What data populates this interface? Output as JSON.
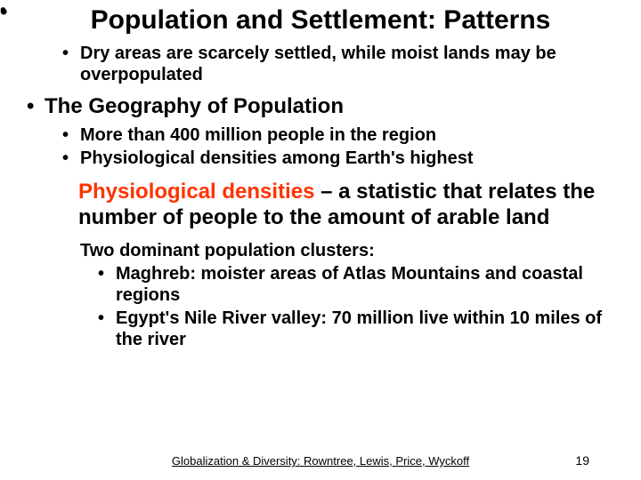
{
  "title": "Population and Settlement: Patterns",
  "accent_color": "#ff3300",
  "text_color": "#000000",
  "background_color": "#ffffff",
  "bullets": {
    "b1": "Dry areas are scarcely settled, while moist lands may be overpopulated",
    "b2": "The Geography of Population",
    "b3": "More than 400 million people in the region",
    "b4": "Physiological densities among Earth's highest",
    "b5_accent": "Physiological densities",
    "b5_rest": " – a statistic that relates the number of  people to the amount of arable land",
    "b6": "Two dominant population clusters:",
    "b7": "Maghreb: moister areas of Atlas Mountains and coastal regions",
    "b8": "Egypt's Nile River valley: 70 million live within 10 miles of the river"
  },
  "footer": "Globalization & Diversity: Rowntree, Lewis, Price, Wyckoff",
  "page_number": "19"
}
